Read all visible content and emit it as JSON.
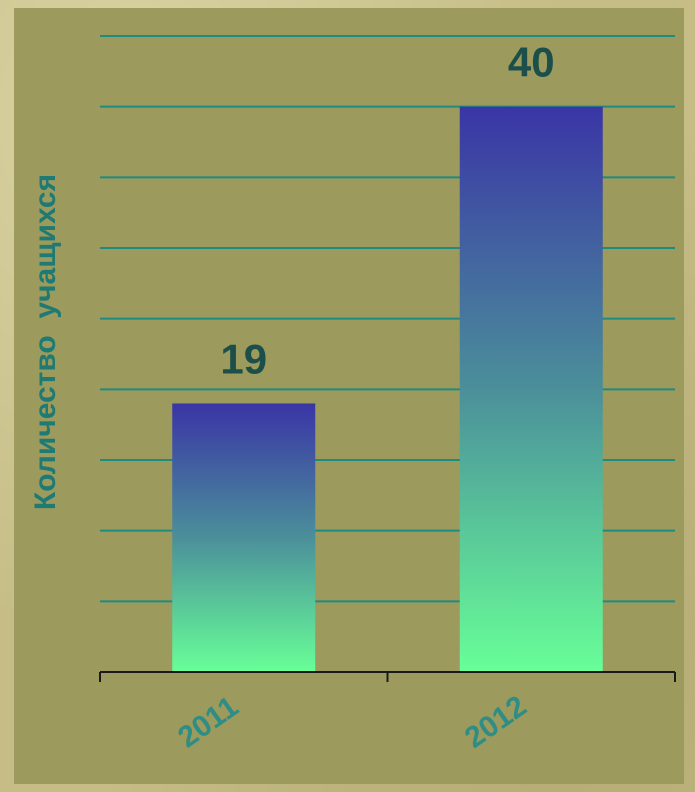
{
  "chart_data": {
    "type": "bar",
    "categories": [
      "2011",
      "2012"
    ],
    "values": [
      19,
      40
    ],
    "data_labels": [
      "19",
      "40"
    ],
    "title": "",
    "xlabel": "",
    "ylabel": "Количество  учащихся",
    "ylim": [
      0,
      45
    ],
    "grid": true,
    "colors": {
      "panel": "#9c9a5c",
      "gridline": "#1f8a80",
      "bar_top": "#3a35a6",
      "bar_mid": "#4b8f9a",
      "bar_bottom": "#68ff98",
      "label": "#1d4f4a",
      "axis_label": "#1e7a72",
      "tick_label": "#2e8e86"
    }
  }
}
